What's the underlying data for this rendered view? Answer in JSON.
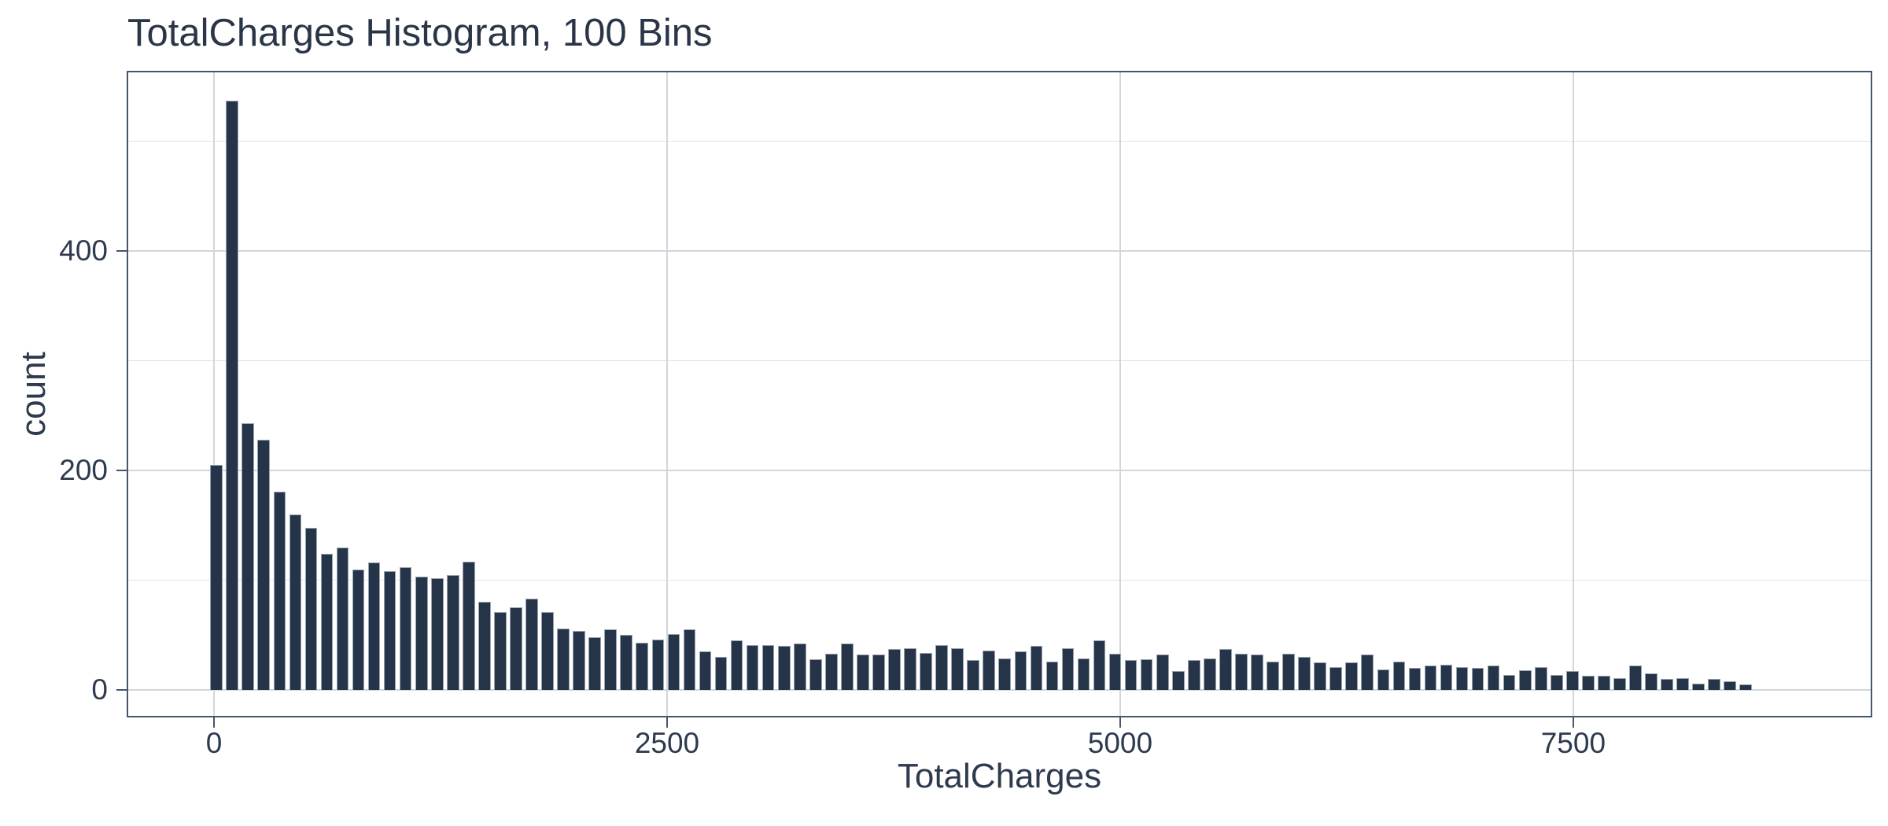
{
  "title": "TotalCharges Histogram, 100 Bins",
  "colors": {
    "bar_fill": "#253448",
    "bar_edge": "#9aa4b0",
    "panel_border": "#46566d",
    "grid_major": "#d2d6da",
    "grid_minor": "#e0e3e7",
    "text": "#2e3a4d",
    "background": "#ffffff"
  },
  "chart_data": {
    "type": "bar",
    "subtype": "histogram",
    "title": "TotalCharges Histogram, 100 Bins",
    "xlabel": "TotalCharges",
    "ylabel": "count",
    "x_ticks": [
      0,
      2500,
      5000,
      7500
    ],
    "y_ticks": [
      0,
      200,
      400
    ],
    "y_minor_gridlines": [
      100,
      300,
      500
    ],
    "x_range": [
      -482,
      9150
    ],
    "y_range": [
      -25,
      564
    ],
    "grid": true,
    "legend": false,
    "n_bins": 100,
    "bin_start": -30,
    "bin_width": 87,
    "counts": [
      205,
      537,
      243,
      228,
      181,
      160,
      148,
      124,
      130,
      110,
      116,
      108,
      112,
      103,
      102,
      105,
      117,
      80,
      71,
      75,
      83,
      71,
      56,
      54,
      48,
      55,
      50,
      43,
      46,
      51,
      55,
      35,
      30,
      45,
      41,
      41,
      40,
      42,
      28,
      33,
      42,
      32,
      32,
      37,
      38,
      34,
      41,
      38,
      27,
      36,
      29,
      35,
      40,
      26,
      38,
      29,
      45,
      33,
      27,
      28,
      32,
      17,
      27,
      29,
      37,
      33,
      32,
      26,
      33,
      30,
      25,
      21,
      25,
      32,
      19,
      26,
      20,
      22,
      23,
      21,
      20,
      22,
      14,
      18,
      21,
      14,
      17,
      13,
      13,
      11,
      22,
      15,
      10,
      11,
      6,
      10,
      8,
      5,
      0,
      0
    ]
  }
}
